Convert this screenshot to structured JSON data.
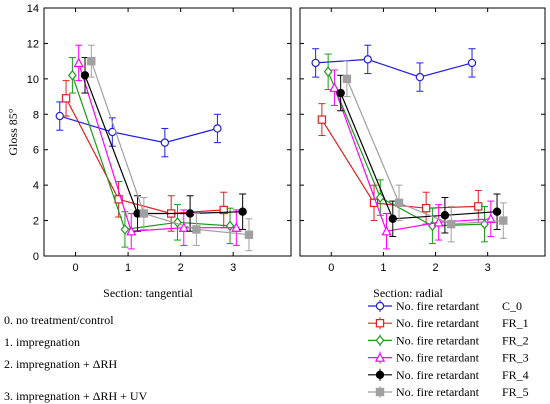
{
  "chart_data": {
    "type": "line",
    "ylabel": "Gloss 85°",
    "ylim": [
      0,
      14
    ],
    "yticks": [
      0,
      2,
      4,
      6,
      8,
      10,
      12,
      14
    ],
    "x_ticks": [
      "0",
      "1",
      "2",
      "3"
    ],
    "series_meta": [
      {
        "id": "C_0",
        "legend": "No. fire retardant",
        "code": "C_0",
        "color": "#1f1fe0",
        "marker": "circle"
      },
      {
        "id": "FR_1",
        "legend": "No. fire retardant",
        "code": "FR_1",
        "color": "#e02020",
        "marker": "square"
      },
      {
        "id": "FR_2",
        "legend": "No. fire retardant",
        "code": "FR_2",
        "color": "#1a9a1a",
        "marker": "diamond"
      },
      {
        "id": "FR_3",
        "legend": "No. fire retardant",
        "code": "FR_3",
        "color": "#ff00ff",
        "marker": "triangle"
      },
      {
        "id": "FR_4",
        "legend": "No. fire retardant",
        "code": "FR_4",
        "color": "#000000",
        "marker": "filled-circle"
      },
      {
        "id": "FR_5",
        "legend": "No. fire retardant",
        "code": "FR_5",
        "color": "#a0a0a0",
        "marker": "filled-square"
      }
    ],
    "panels": [
      {
        "xlabel": "Section: tangential",
        "series": [
          {
            "id": "C_0",
            "x": [
              -0.3,
              0.7,
              1.7,
              2.7
            ],
            "y": [
              7.9,
              7.0,
              6.4,
              7.2
            ],
            "err": [
              0.8,
              0.8,
              0.8,
              0.8
            ]
          },
          {
            "id": "FR_1",
            "x": [
              -0.18,
              0.82,
              1.82,
              2.82
            ],
            "y": [
              8.9,
              3.2,
              2.4,
              2.6
            ],
            "err": [
              1.0,
              1.0,
              1.0,
              1.0
            ]
          },
          {
            "id": "FR_2",
            "x": [
              -0.06,
              0.94,
              1.94,
              2.94
            ],
            "y": [
              10.2,
              1.5,
              1.9,
              1.7
            ],
            "err": [
              1.0,
              1.0,
              1.0,
              1.0
            ]
          },
          {
            "id": "FR_3",
            "x": [
              0.06,
              1.06,
              2.06,
              3.06
            ],
            "y": [
              10.9,
              1.4,
              1.6,
              1.6
            ],
            "err": [
              1.0,
              1.0,
              1.0,
              1.0
            ]
          },
          {
            "id": "FR_4",
            "x": [
              0.18,
              1.18,
              2.18,
              3.18
            ],
            "y": [
              10.2,
              2.4,
              2.4,
              2.5
            ],
            "err": [
              1.0,
              1.0,
              1.0,
              1.0
            ]
          },
          {
            "id": "FR_5",
            "x": [
              0.3,
              1.3,
              2.3,
              3.3
            ],
            "y": [
              11.0,
              2.4,
              1.5,
              1.2
            ],
            "err": [
              0.9,
              0.9,
              0.9,
              0.9
            ]
          }
        ]
      },
      {
        "xlabel": "Section: radial",
        "series": [
          {
            "id": "C_0",
            "x": [
              -0.3,
              0.7,
              1.7,
              2.7
            ],
            "y": [
              10.9,
              11.1,
              10.1,
              10.9
            ],
            "err": [
              0.8,
              0.8,
              0.8,
              0.8
            ]
          },
          {
            "id": "FR_1",
            "x": [
              -0.18,
              0.82,
              1.82,
              2.82
            ],
            "y": [
              7.7,
              3.0,
              2.7,
              2.8
            ],
            "err": [
              0.9,
              1.0,
              0.9,
              0.9
            ]
          },
          {
            "id": "FR_2",
            "x": [
              -0.06,
              0.94,
              1.94,
              2.94
            ],
            "y": [
              10.4,
              3.3,
              1.7,
              1.8
            ],
            "err": [
              1.0,
              1.0,
              1.0,
              1.0
            ]
          },
          {
            "id": "FR_3",
            "x": [
              0.06,
              1.06,
              2.06,
              3.06
            ],
            "y": [
              9.5,
              1.4,
              1.9,
              2.1
            ],
            "err": [
              1.0,
              1.0,
              1.0,
              1.0
            ]
          },
          {
            "id": "FR_4",
            "x": [
              0.18,
              1.18,
              2.18,
              3.18
            ],
            "y": [
              9.2,
              2.1,
              2.3,
              2.5
            ],
            "err": [
              1.0,
              1.0,
              1.0,
              1.0
            ]
          },
          {
            "id": "FR_5",
            "x": [
              0.3,
              1.3,
              2.3,
              3.3
            ],
            "y": [
              10.0,
              3.0,
              1.8,
              2.0
            ],
            "err": [
              1.0,
              1.0,
              1.0,
              1.0
            ]
          }
        ]
      }
    ]
  },
  "notes": [
    "0. no treatment/control",
    "1. impregnation",
    "2. impregnation + ΔRH",
    "3. impregnation + ΔRH + UV"
  ]
}
